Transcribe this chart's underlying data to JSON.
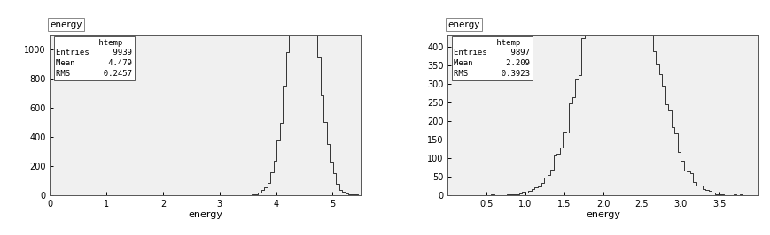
{
  "plot1": {
    "title": "energy",
    "xlabel": "energy",
    "entries": 9939,
    "mean": 4.479,
    "rms": 0.2457,
    "xlim": [
      0,
      5.5
    ],
    "ylim": [
      0,
      1100
    ],
    "yticks": [
      0,
      200,
      400,
      600,
      800,
      1000
    ],
    "xticks": [
      0,
      1,
      2,
      3,
      4,
      5
    ],
    "hist_mean": 4.479,
    "hist_rms": 0.2457,
    "hist_n": 9939,
    "color": "#333333",
    "bg_color": "#ffffff",
    "plot_bg": "#f0f0f0"
  },
  "plot2": {
    "title": "energy",
    "xlabel": "energy",
    "entries": 9897,
    "mean": 2.209,
    "rms": 0.3923,
    "xlim": [
      0.0,
      4.0
    ],
    "ylim": [
      0,
      430
    ],
    "yticks": [
      0,
      50,
      100,
      150,
      200,
      250,
      300,
      350,
      400
    ],
    "xticks": [
      0.5,
      1.0,
      1.5,
      2.0,
      2.5,
      3.0,
      3.5
    ],
    "hist_mean": 2.209,
    "hist_rms": 0.3923,
    "hist_n": 9897,
    "color": "#333333",
    "bg_color": "#ffffff",
    "plot_bg": "#f0f0f0"
  }
}
